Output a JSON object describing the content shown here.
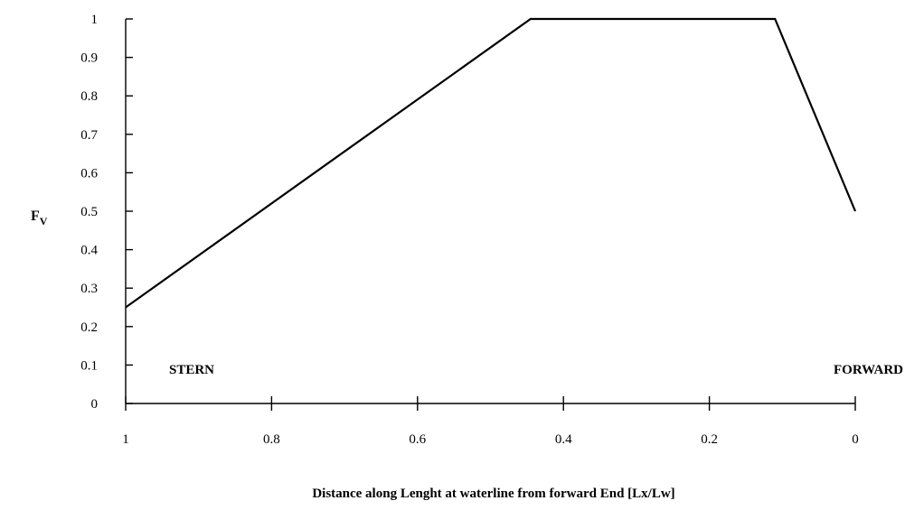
{
  "chart_data": {
    "type": "line",
    "title": "",
    "xlabel": "Distance along Lenght at waterline from forward End [Lx/Lw]",
    "ylabel": {
      "main": "F",
      "sub": "V"
    },
    "xlim": [
      1,
      0
    ],
    "ylim": [
      0,
      1
    ],
    "x_ticks": [
      1,
      0.8,
      0.6,
      0.4,
      0.2,
      0
    ],
    "y_ticks": [
      0,
      0.1,
      0.2,
      0.3,
      0.4,
      0.5,
      0.6,
      0.7,
      0.8,
      0.9,
      1
    ],
    "x_tick_labels": [
      "1",
      "0.8",
      "0.6",
      "0.4",
      "0.2",
      "0"
    ],
    "y_tick_labels": [
      "0",
      "0.1",
      "0.2",
      "0.3",
      "0.4",
      "0.5",
      "0.6",
      "0.7",
      "0.8",
      "0.9",
      "1"
    ],
    "grid": false,
    "legend": "none",
    "series": [
      {
        "x": [
          1,
          0.445,
          0.11,
          0
        ],
        "y": [
          0.25,
          1,
          1,
          0.5
        ]
      }
    ],
    "annotations": [
      {
        "text": "STERN",
        "x": 0.94,
        "y": 0.08
      },
      {
        "text": "FORWARD",
        "x": 0,
        "y": 0.08
      }
    ]
  }
}
